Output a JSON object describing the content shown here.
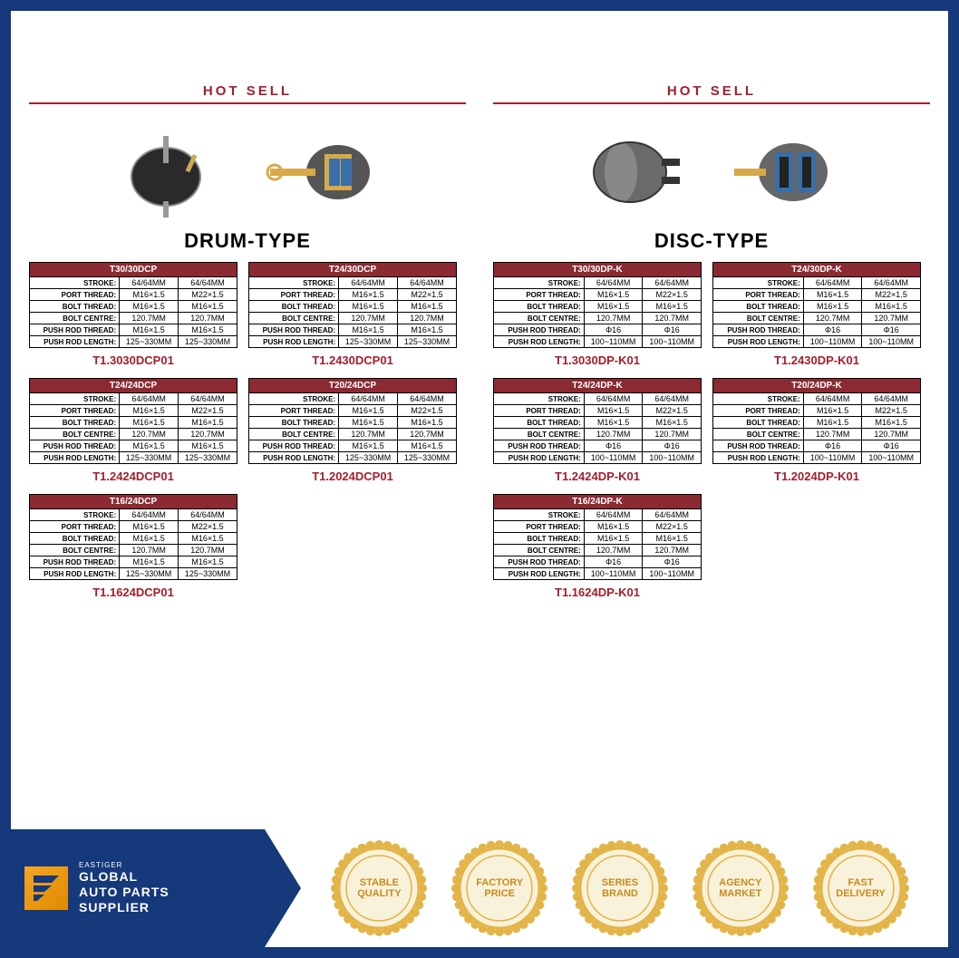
{
  "hotsell_label": "HOT SELL",
  "colors": {
    "primary_border": "#15397a",
    "accent": "#a31f2e",
    "table_header": "#8b2a32",
    "gold": "#e3b549"
  },
  "left": {
    "type_title": "DRUM-TYPE",
    "row_labels": [
      "STROKE:",
      "PORT THREAD:",
      "BOLT THREAD:",
      "BOLT CENTRE:",
      "PUSH ROD THREAD:",
      "PUSH ROD LENGTH:"
    ],
    "cards": [
      {
        "header": "T30/30DCP",
        "code": "T1.3030DCP01",
        "rows": [
          [
            "64/64MM",
            "64/64MM"
          ],
          [
            "M16×1.5",
            "M22×1.5"
          ],
          [
            "M16×1.5",
            "M16×1.5"
          ],
          [
            "120.7MM",
            "120.7MM"
          ],
          [
            "M16×1.5",
            "M16×1.5"
          ],
          [
            "125~330MM",
            "125~330MM"
          ]
        ]
      },
      {
        "header": "T24/30DCP",
        "code": "T1.2430DCP01",
        "rows": [
          [
            "64/64MM",
            "64/64MM"
          ],
          [
            "M16×1.5",
            "M22×1.5"
          ],
          [
            "M16×1.5",
            "M16×1.5"
          ],
          [
            "120.7MM",
            "120.7MM"
          ],
          [
            "M16×1.5",
            "M16×1.5"
          ],
          [
            "125~330MM",
            "125~330MM"
          ]
        ]
      },
      {
        "header": "T24/24DCP",
        "code": "T1.2424DCP01",
        "rows": [
          [
            "64/64MM",
            "64/64MM"
          ],
          [
            "M16×1.5",
            "M22×1.5"
          ],
          [
            "M16×1.5",
            "M16×1.5"
          ],
          [
            "120.7MM",
            "120.7MM"
          ],
          [
            "M16×1.5",
            "M16×1.5"
          ],
          [
            "125~330MM",
            "125~330MM"
          ]
        ]
      },
      {
        "header": "T20/24DCP",
        "code": "T1.2024DCP01",
        "rows": [
          [
            "64/64MM",
            "64/64MM"
          ],
          [
            "M16×1.5",
            "M22×1.5"
          ],
          [
            "M16×1.5",
            "M16×1.5"
          ],
          [
            "120.7MM",
            "120.7MM"
          ],
          [
            "M16×1.5",
            "M16×1.5"
          ],
          [
            "125~330MM",
            "125~330MM"
          ]
        ]
      },
      {
        "header": "T16/24DCP",
        "code": "T1.1624DCP01",
        "rows": [
          [
            "64/64MM",
            "64/64MM"
          ],
          [
            "M16×1.5",
            "M22×1.5"
          ],
          [
            "M16×1.5",
            "M16×1.5"
          ],
          [
            "120.7MM",
            "120.7MM"
          ],
          [
            "M16×1.5",
            "M16×1.5"
          ],
          [
            "125~330MM",
            "125~330MM"
          ]
        ]
      }
    ]
  },
  "right": {
    "type_title": "DISC-TYPE",
    "row_labels": [
      "STROKE:",
      "PORT THREAD:",
      "BOLT THREAD:",
      "BOLT CENTRE:",
      "PUSH ROD THREAD:",
      "PUSH ROD LENGTH:"
    ],
    "cards": [
      {
        "header": "T30/30DP-K",
        "code": "T1.3030DP-K01",
        "rows": [
          [
            "64/64MM",
            "64/64MM"
          ],
          [
            "M16×1.5",
            "M22×1.5"
          ],
          [
            "M16×1.5",
            "M16×1.5"
          ],
          [
            "120.7MM",
            "120.7MM"
          ],
          [
            "Φ16",
            "Φ16"
          ],
          [
            "100~110MM",
            "100~110MM"
          ]
        ]
      },
      {
        "header": "T24/30DP-K",
        "code": "T1.2430DP-K01",
        "rows": [
          [
            "64/64MM",
            "64/64MM"
          ],
          [
            "M16×1.5",
            "M22×1.5"
          ],
          [
            "M16×1.5",
            "M16×1.5"
          ],
          [
            "120.7MM",
            "120.7MM"
          ],
          [
            "Φ16",
            "Φ16"
          ],
          [
            "100~110MM",
            "100~110MM"
          ]
        ]
      },
      {
        "header": "T24/24DP-K",
        "code": "T1.2424DP-K01",
        "rows": [
          [
            "64/64MM",
            "64/64MM"
          ],
          [
            "M16×1.5",
            "M22×1.5"
          ],
          [
            "M16×1.5",
            "M16×1.5"
          ],
          [
            "120.7MM",
            "120.7MM"
          ],
          [
            "Φ16",
            "Φ16"
          ],
          [
            "100~110MM",
            "100~110MM"
          ]
        ]
      },
      {
        "header": "T20/24DP-K",
        "code": "T1.2024DP-K01",
        "rows": [
          [
            "64/64MM",
            "64/64MM"
          ],
          [
            "M16×1.5",
            "M22×1.5"
          ],
          [
            "M16×1.5",
            "M16×1.5"
          ],
          [
            "120.7MM",
            "120.7MM"
          ],
          [
            "Φ16",
            "Φ16"
          ],
          [
            "100~110MM",
            "100~110MM"
          ]
        ]
      },
      {
        "header": "T16/24DP-K",
        "code": "T1.1624DP-K01",
        "rows": [
          [
            "64/64MM",
            "64/64MM"
          ],
          [
            "M16×1.5",
            "M22×1.5"
          ],
          [
            "M16×1.5",
            "M16×1.5"
          ],
          [
            "120.7MM",
            "120.7MM"
          ],
          [
            "Φ16",
            "Φ16"
          ],
          [
            "100~110MM",
            "100~110MM"
          ]
        ]
      }
    ]
  },
  "footer": {
    "brand": "EASTIGER",
    "tagline1": "GLOBAL",
    "tagline2": "AUTO PARTS",
    "tagline3": "SUPPLIER",
    "badges": [
      "STABLE QUALITY",
      "FACTORY PRICE",
      "SERIES BRAND",
      "AGENCY MARKET",
      "FAST DELIVERY"
    ]
  }
}
